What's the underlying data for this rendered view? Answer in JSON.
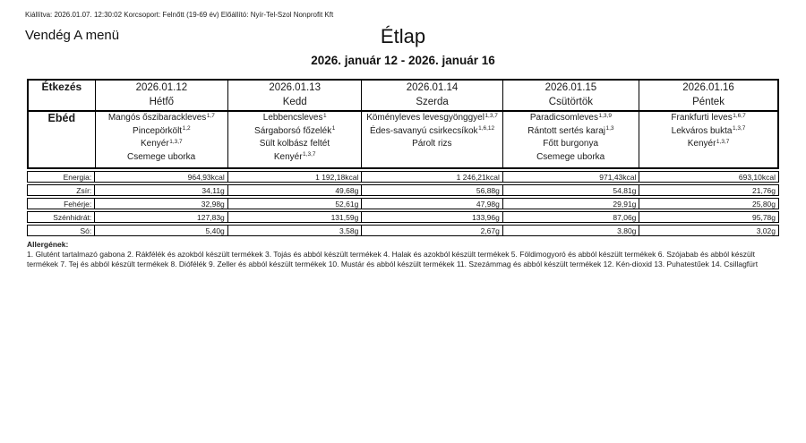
{
  "header": {
    "meta_line": "Kiállítva: 2026.01.07. 12:30:02 Korcsoport: Felnőtt (19-69 év) Előállító: Nyír-Tel-Szol Nonprofit Kft",
    "menu_label": "Vendég A menü",
    "title": "Étlap",
    "date_range": "2026. január 12 - 2026. január 16"
  },
  "table": {
    "meal_header": "Étkezés",
    "meal_row_label": "Ebéd",
    "days": [
      {
        "date": "2026.01.12",
        "day": "Hétfő",
        "dishes": [
          {
            "name": "Mangós őszibarackleves",
            "allergens": "1,7"
          },
          {
            "name": "Pincepörkölt",
            "allergens": "1,2"
          },
          {
            "name": "Kenyér",
            "allergens": "1,3,7"
          },
          {
            "name": "Csemege uborka",
            "allergens": ""
          }
        ]
      },
      {
        "date": "2026.01.13",
        "day": "Kedd",
        "dishes": [
          {
            "name": "Lebbencsleves",
            "allergens": "1"
          },
          {
            "name": "Sárgaborsó főzelék",
            "allergens": "1"
          },
          {
            "name": "Sült kolbász feltét",
            "allergens": ""
          },
          {
            "name": "Kenyér",
            "allergens": "1,3,7"
          }
        ]
      },
      {
        "date": "2026.01.14",
        "day": "Szerda",
        "dishes": [
          {
            "name": "Köményleves levesgyönggyel",
            "allergens": "1,3,7"
          },
          {
            "name": "Édes-savanyú csirkecsíkok",
            "allergens": "1,6,12"
          },
          {
            "name": "Párolt rizs",
            "allergens": ""
          }
        ]
      },
      {
        "date": "2026.01.15",
        "day": "Csütörtök",
        "dishes": [
          {
            "name": "Paradicsomleves",
            "allergens": "1,3,9"
          },
          {
            "name": "Rántott sertés karaj",
            "allergens": "1,3"
          },
          {
            "name": "Főtt burgonya",
            "allergens": ""
          },
          {
            "name": "Csemege uborka",
            "allergens": ""
          }
        ]
      },
      {
        "date": "2026.01.16",
        "day": "Péntek",
        "dishes": [
          {
            "name": "Frankfurti leves",
            "allergens": "1,6,7"
          },
          {
            "name": "Lekváros bukta",
            "allergens": "1,3,7"
          },
          {
            "name": "Kenyér",
            "allergens": "1,3,7"
          }
        ]
      }
    ],
    "nutrition_rows": [
      {
        "label": "Energia:",
        "values": [
          "964,93kcal",
          "1 192,18kcal",
          "1 246,21kcal",
          "971,43kcal",
          "693,10kcal"
        ]
      },
      {
        "label": "Zsír:",
        "values": [
          "34,11g",
          "49,68g",
          "56,88g",
          "54,81g",
          "21,76g"
        ]
      },
      {
        "label": "Fehérje:",
        "values": [
          "32,98g",
          "52,61g",
          "47,98g",
          "29,91g",
          "25,80g"
        ]
      },
      {
        "label": "Szénhidrát:",
        "values": [
          "127,83g",
          "131,59g",
          "133,96g",
          "87,06g",
          "95,78g"
        ]
      },
      {
        "label": "Só:",
        "values": [
          "5,40g",
          "3,58g",
          "2,67g",
          "3,80g",
          "3,02g"
        ]
      }
    ]
  },
  "allergens": {
    "heading": "Allergének:",
    "text": "1. Glutént tartalmazó gabona 2. Rákfélék és azokból készült termékek 3. Tojás és abból készült termékek 4. Halak és azokból készült termékek 5. Földimogyoró és abból készült termékek 6. Szójabab és abból készült termékek 7. Tej és abból készült termékek 8. Diófélék 9. Zeller és abból készült termékek 10. Mustár és abból készült termékek 11. Szezámmag és abból készült termékek 12. Kén-dioxid 13. Puhatestűek 14. Csillagfürt"
  }
}
